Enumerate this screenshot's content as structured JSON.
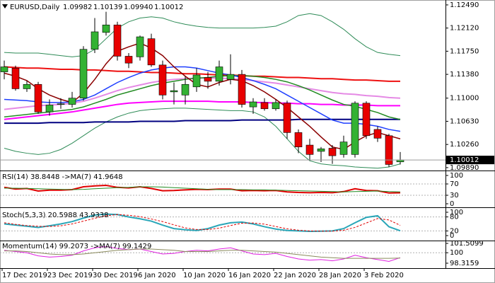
{
  "chart_data": [
    {
      "type": "candlestick",
      "title": "EURUSD,Daily",
      "header_values": [
        {
          "value": 1.09982,
          "label": "1.09982"
        },
        {
          "value": 1.10139,
          "label": "1.10139"
        },
        {
          "value": 1.0994,
          "label": "1.09940"
        },
        {
          "value": 1.10012,
          "label": "1.10012"
        }
      ],
      "categories": [
        "17 Dec 2019",
        null,
        null,
        null,
        "23 Dec 2019",
        null,
        null,
        null,
        "30 Dec 2019",
        null,
        null,
        null,
        "6 Jan 2020",
        null,
        null,
        null,
        "10 Jan 2020",
        null,
        null,
        null,
        "16 Jan 2020",
        null,
        null,
        null,
        "22 Jan 2020",
        null,
        null,
        null,
        "28 Jan 2020",
        null,
        null,
        null,
        "3 Feb 2020",
        null,
        null,
        null
      ],
      "open": [
        1.1142,
        1.1148,
        1.1115,
        1.1122,
        1.1078,
        1.109,
        1.109,
        1.11,
        1.1178,
        1.1205,
        1.1217,
        1.1167,
        1.1166,
        1.1195,
        1.1153,
        1.111,
        1.1105,
        1.1118,
        1.1133,
        1.1127,
        1.113,
        1.1138,
        1.1086,
        1.1093,
        1.1083,
        1.1092,
        1.1045,
        1.1025,
        1.1015,
        1.102,
        1.101,
        1.101,
        1.1092,
        1.105,
        1.104,
        1.09982
      ],
      "high": [
        1.116,
        1.1152,
        1.1128,
        1.1126,
        1.1098,
        1.11,
        1.111,
        1.1183,
        1.1228,
        1.1238,
        1.1222,
        1.1172,
        1.12,
        1.1203,
        1.116,
        1.1125,
        1.1135,
        1.1148,
        1.1142,
        1.116,
        1.117,
        1.1145,
        1.11,
        1.11,
        1.1098,
        1.1096,
        1.105,
        1.1035,
        1.1022,
        1.1025,
        1.104,
        1.1095,
        1.1095,
        1.1055,
        1.1043,
        1.10139
      ],
      "low": [
        1.113,
        1.1112,
        1.111,
        1.1075,
        1.1072,
        1.1083,
        1.1085,
        1.1096,
        1.1172,
        1.12,
        1.116,
        1.1148,
        1.116,
        1.115,
        1.1098,
        1.109,
        1.109,
        1.111,
        1.1115,
        1.112,
        1.1122,
        1.1085,
        1.1075,
        1.108,
        1.108,
        1.1035,
        1.1012,
        1.1,
        1.0998,
        1.0995,
        1.1005,
        1.1005,
        1.1035,
        1.103,
        1.099,
        1.0994
      ],
      "close": [
        1.115,
        1.1115,
        1.1122,
        1.1078,
        1.1089,
        1.1091,
        1.11,
        1.1178,
        1.1206,
        1.1217,
        1.1167,
        1.1156,
        1.1198,
        1.1153,
        1.1105,
        1.1112,
        1.1122,
        1.1137,
        1.1127,
        1.115,
        1.1138,
        1.109,
        1.1094,
        1.1083,
        1.1093,
        1.1045,
        1.1022,
        1.101,
        1.1019,
        1.1008,
        1.103,
        1.1092,
        1.104,
        1.1036,
        1.0994,
        1.10012
      ],
      "up_color": "#33b233",
      "down_color": "#e80000",
      "series": [
        {
          "color": "#2e8b57",
          "width": 1,
          "values": [
            1.1173,
            1.1172,
            1.1172,
            1.1172,
            1.117,
            1.1168,
            1.1166,
            1.1168,
            1.1178,
            1.1195,
            1.1212,
            1.1222,
            1.1228,
            1.123,
            1.1228,
            1.1222,
            1.1218,
            1.1215,
            1.1213,
            1.1212,
            1.1212,
            1.1212,
            1.1212,
            1.1213,
            1.1215,
            1.1222,
            1.1232,
            1.1235,
            1.1232,
            1.1222,
            1.121,
            1.1195,
            1.1182,
            1.1173,
            1.117,
            1.1168
          ]
        },
        {
          "color": "#2e8b57",
          "width": 1,
          "values": [
            1.102,
            1.1015,
            1.1012,
            1.101,
            1.1012,
            1.1018,
            1.1028,
            1.104,
            1.1052,
            1.1062,
            1.107,
            1.1076,
            1.108,
            1.1082,
            1.1083,
            1.1084,
            1.1084,
            1.1083,
            1.1082,
            1.1081,
            1.108,
            1.108,
            1.1078,
            1.107,
            1.1055,
            1.1035,
            1.1015,
            1.1,
            1.0995,
            1.0993,
            1.0992,
            1.099,
            1.0989,
            1.0988,
            1.099,
            1.0995
          ]
        },
        {
          "color": "#000080",
          "width": 2,
          "values": [
            1.106,
            1.106,
            1.106,
            1.106,
            1.1061,
            1.1061,
            1.1061,
            1.1061,
            1.1062,
            1.1062,
            1.1062,
            1.1062,
            1.1063,
            1.1063,
            1.1063,
            1.1063,
            1.1064,
            1.1064,
            1.1064,
            1.1064,
            1.1064,
            1.1065,
            1.1065,
            1.1065,
            1.1065,
            1.1065,
            1.1066,
            1.1066,
            1.1066,
            1.1066,
            1.1066,
            1.1066,
            1.1066,
            1.1066,
            1.1066,
            1.1066
          ]
        },
        {
          "color": "#ff00ff",
          "width": 2,
          "values": [
            1.1066,
            1.1068,
            1.107,
            1.1072,
            1.1074,
            1.1076,
            1.1078,
            1.1081,
            1.1084,
            1.1087,
            1.109,
            1.1092,
            1.1093,
            1.1094,
            1.1095,
            1.1095,
            1.1095,
            1.1095,
            1.1095,
            1.1094,
            1.1094,
            1.1094,
            1.1093,
            1.1093,
            1.1092,
            1.1092,
            1.1091,
            1.1091,
            1.109,
            1.109,
            1.1089,
            1.1089,
            1.1089,
            1.1088,
            1.1088,
            1.1088
          ]
        },
        {
          "color": "#e58ae5",
          "width": 2,
          "values": [
            1.1082,
            1.1084,
            1.1086,
            1.1088,
            1.1089,
            1.109,
            1.1092,
            1.1095,
            1.11,
            1.1106,
            1.1112,
            1.1117,
            1.1121,
            1.1125,
            1.1128,
            1.113,
            1.1131,
            1.1132,
            1.1132,
            1.1132,
            1.1131,
            1.113,
            1.1128,
            1.1126,
            1.1124,
            1.1121,
            1.1118,
            1.1115,
            1.1112,
            1.1109,
            1.1107,
            1.1106,
            1.1104,
            1.1103,
            1.1101,
            1.11
          ]
        },
        {
          "color": "#ee1111",
          "width": 2,
          "values": [
            1.115,
            1.1149,
            1.1148,
            1.1148,
            1.1147,
            1.1146,
            1.1146,
            1.1145,
            1.1145,
            1.1144,
            1.1143,
            1.1143,
            1.1142,
            1.1141,
            1.1141,
            1.114,
            1.1139,
            1.1139,
            1.1138,
            1.1137,
            1.1137,
            1.1136,
            1.1135,
            1.1135,
            1.1134,
            1.1133,
            1.1133,
            1.1132,
            1.1131,
            1.1131,
            1.113,
            1.1129,
            1.1129,
            1.1128,
            1.1127,
            1.1127
          ]
        },
        {
          "color": "#228b22",
          "width": 1.5,
          "values": [
            1.107,
            1.1072,
            1.1074,
            1.1076,
            1.1078,
            1.108,
            1.1082,
            1.1086,
            1.1092,
            1.1098,
            1.1105,
            1.111,
            1.1115,
            1.112,
            1.1124,
            1.1127,
            1.113,
            1.1132,
            1.1133,
            1.1135,
            1.1136,
            1.1136,
            1.1135,
            1.1133,
            1.113,
            1.1126,
            1.112,
            1.1113,
            1.1105,
            1.1097,
            1.109,
            1.1087,
            1.1082,
            1.1077,
            1.107,
            1.1066
          ]
        },
        {
          "color": "#1f3fff",
          "width": 1.5,
          "values": [
            1.1098,
            1.1097,
            1.1096,
            1.1094,
            1.1093,
            1.1093,
            1.1094,
            1.1098,
            1.1105,
            1.1115,
            1.1125,
            1.1133,
            1.114,
            1.1145,
            1.1148,
            1.115,
            1.115,
            1.1148,
            1.1144,
            1.114,
            1.1137,
            1.1133,
            1.1128,
            1.1122,
            1.1115,
            1.1105,
            1.1095,
            1.1085,
            1.1075,
            1.1065,
            1.106,
            1.106,
            1.1058,
            1.1055,
            1.105,
            1.1047
          ]
        },
        {
          "color": "#8b0000",
          "width": 1.5,
          "values": [
            1.114,
            1.1135,
            1.1128,
            1.1115,
            1.1105,
            1.1098,
            1.1093,
            1.1108,
            1.113,
            1.1155,
            1.1175,
            1.1182,
            1.1188,
            1.118,
            1.1168,
            1.115,
            1.1135,
            1.1122,
            1.1118,
            1.1125,
            1.113,
            1.1128,
            1.112,
            1.111,
            1.1098,
            1.1085,
            1.107,
            1.1055,
            1.1038,
            1.1022,
            1.1018,
            1.103,
            1.104,
            1.1045,
            1.104,
            1.1035
          ]
        }
      ],
      "current": {
        "value": 1.10012,
        "label": "1.10012"
      },
      "ylim": [
        1.09855,
        1.12557
      ],
      "yticks": [
        {
          "value": 1.1249,
          "label": "1.12490"
        },
        {
          "value": 1.1212,
          "label": "1.12120"
        },
        {
          "value": 1.1175,
          "label": "1.11750"
        },
        {
          "value": 1.1138,
          "label": "1.11380"
        },
        {
          "value": 1.11,
          "label": "1.11000"
        },
        {
          "value": 1.1063,
          "label": "1.10630"
        },
        {
          "value": 1.1026,
          "label": "1.10260"
        },
        {
          "value": 1.0989,
          "label": "1.09890"
        }
      ],
      "grid": false
    },
    {
      "type": "line",
      "title": "RSI(14) 38.8448 ->MA(7) 41.9648",
      "series": [
        {
          "color": "#e00000",
          "width": 2,
          "values": [
            58,
            52,
            54,
            45,
            48,
            48,
            50,
            60,
            63,
            65,
            58,
            56,
            60,
            54,
            46,
            47,
            49,
            51,
            50,
            52,
            52,
            46,
            47,
            46,
            47,
            42,
            40,
            39,
            40,
            39,
            43,
            53,
            47,
            46,
            38,
            38.8448
          ]
        },
        {
          "color": "#228b22",
          "width": 1,
          "values": [
            55,
            55,
            54,
            53,
            52,
            51,
            50,
            51,
            53,
            55,
            57,
            58,
            60,
            60,
            59,
            57,
            55,
            53,
            51,
            50,
            50,
            50,
            49,
            49,
            48,
            47,
            46,
            45,
            44,
            43,
            42,
            43,
            44,
            45,
            43,
            41.9648
          ]
        }
      ],
      "ylim": [
        0,
        100
      ],
      "yticks": [
        100,
        70,
        30,
        0
      ],
      "grid": true
    },
    {
      "type": "line",
      "title": "Stoch(5,3,3) 20.5988 43.9338",
      "series": [
        {
          "color": "#2aa6b8",
          "width": 2,
          "values": [
            50,
            45,
            40,
            35,
            42,
            50,
            60,
            75,
            88,
            92,
            90,
            80,
            72,
            62,
            45,
            30,
            25,
            22,
            30,
            45,
            55,
            58,
            50,
            38,
            28,
            22,
            20,
            18,
            19,
            20,
            30,
            55,
            78,
            85,
            38,
            20.5988
          ]
        },
        {
          "color": "#e00000",
          "width": 1,
          "dash": true,
          "values": [
            55,
            48,
            43,
            40,
            39,
            42,
            50,
            62,
            74,
            85,
            90,
            87,
            81,
            71,
            60,
            46,
            33,
            26,
            26,
            32,
            43,
            53,
            54,
            49,
            39,
            29,
            23,
            20,
            19,
            19,
            23,
            35,
            54,
            73,
            67,
            43.9338
          ]
        }
      ],
      "ylim": [
        0,
        100
      ],
      "yticks": [
        100,
        80,
        20,
        0
      ],
      "grid": true
    },
    {
      "type": "line",
      "title": "Momentum(14) 99.2073 ->MA(7) 99.1429",
      "series": [
        {
          "color": "#e020e0",
          "width": 1,
          "values": [
            100.4,
            100.2,
            100.0,
            99.5,
            99.3,
            99.4,
            99.6,
            100.3,
            100.8,
            101.0,
            100.7,
            100.5,
            100.6,
            100.2,
            99.8,
            99.9,
            100.2,
            100.4,
            100.3,
            100.6,
            100.8,
            100.3,
            99.8,
            99.7,
            99.9,
            99.4,
            99.0,
            98.8,
            98.9,
            98.7,
            99.0,
            99.6,
            99.2,
            98.9,
            98.6,
            99.2073
          ]
        },
        {
          "color": "#8a8a5c",
          "width": 1,
          "values": [
            100.3,
            100.3,
            100.2,
            100.0,
            99.8,
            99.7,
            99.7,
            99.8,
            100.0,
            100.2,
            100.4,
            100.5,
            100.6,
            100.6,
            100.5,
            100.4,
            100.2,
            100.2,
            100.2,
            100.3,
            100.4,
            100.4,
            100.3,
            100.2,
            100.1,
            99.9,
            99.7,
            99.5,
            99.3,
            99.2,
            99.1,
            99.1,
            99.1,
            99.1,
            99.1,
            99.1429
          ]
        }
      ],
      "ylim": [
        98.3159,
        101.5099
      ],
      "yticks": [
        101.5099,
        100,
        98.3159
      ],
      "grid": true
    }
  ]
}
